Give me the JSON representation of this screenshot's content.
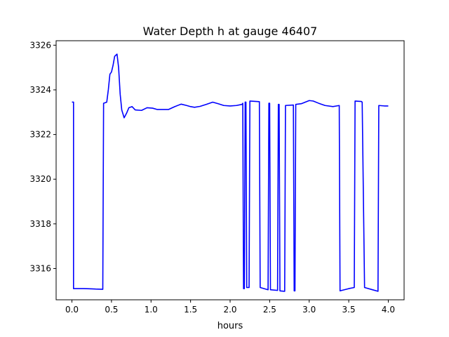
{
  "chart_data": {
    "type": "line",
    "title": "Water Depth h at gauge 46407",
    "xlabel": "hours",
    "ylabel": "",
    "xlim": [
      -0.2,
      4.2
    ],
    "ylim": [
      3314.6,
      3326.2
    ],
    "xticks": [
      0.0,
      0.5,
      1.0,
      1.5,
      2.0,
      2.5,
      3.0,
      3.5,
      4.0
    ],
    "xtick_labels": [
      "0.0",
      "0.5",
      "1.0",
      "1.5",
      "2.0",
      "2.5",
      "3.0",
      "3.5",
      "4.0"
    ],
    "yticks": [
      3316,
      3318,
      3320,
      3322,
      3324,
      3326
    ],
    "ytick_labels": [
      "3316",
      "3318",
      "3320",
      "3322",
      "3324",
      "3326"
    ],
    "grid": false,
    "color": "#0000ff",
    "series": [
      {
        "name": "",
        "points": [
          [
            0.0,
            3323.45
          ],
          [
            0.02,
            3323.45
          ],
          [
            0.02,
            3315.1
          ],
          [
            0.15,
            3315.1
          ],
          [
            0.25,
            3315.09
          ],
          [
            0.3,
            3315.08
          ],
          [
            0.39,
            3315.07
          ],
          [
            0.4,
            3323.4
          ],
          [
            0.44,
            3323.45
          ],
          [
            0.46,
            3324.0
          ],
          [
            0.48,
            3324.7
          ],
          [
            0.5,
            3324.8
          ],
          [
            0.52,
            3325.1
          ],
          [
            0.54,
            3325.5
          ],
          [
            0.57,
            3325.6
          ],
          [
            0.59,
            3325.0
          ],
          [
            0.61,
            3323.8
          ],
          [
            0.63,
            3323.1
          ],
          [
            0.66,
            3322.75
          ],
          [
            0.69,
            3322.95
          ],
          [
            0.72,
            3323.2
          ],
          [
            0.76,
            3323.25
          ],
          [
            0.8,
            3323.1
          ],
          [
            0.88,
            3323.08
          ],
          [
            0.95,
            3323.2
          ],
          [
            1.02,
            3323.18
          ],
          [
            1.08,
            3323.12
          ],
          [
            1.15,
            3323.12
          ],
          [
            1.22,
            3323.12
          ],
          [
            1.3,
            3323.25
          ],
          [
            1.38,
            3323.36
          ],
          [
            1.45,
            3323.3
          ],
          [
            1.5,
            3323.25
          ],
          [
            1.55,
            3323.22
          ],
          [
            1.62,
            3323.26
          ],
          [
            1.7,
            3323.35
          ],
          [
            1.78,
            3323.45
          ],
          [
            1.85,
            3323.38
          ],
          [
            1.92,
            3323.3
          ],
          [
            2.0,
            3323.28
          ],
          [
            2.08,
            3323.3
          ],
          [
            2.15,
            3323.35
          ],
          [
            2.16,
            3323.4
          ],
          [
            2.17,
            3315.1
          ],
          [
            2.18,
            3315.1
          ],
          [
            2.19,
            3323.45
          ],
          [
            2.2,
            3323.45
          ],
          [
            2.21,
            3315.15
          ],
          [
            2.24,
            3315.15
          ],
          [
            2.25,
            3323.5
          ],
          [
            2.37,
            3323.47
          ],
          [
            2.38,
            3315.15
          ],
          [
            2.48,
            3315.05
          ],
          [
            2.49,
            3323.4
          ],
          [
            2.5,
            3323.4
          ],
          [
            2.51,
            3315.05
          ],
          [
            2.6,
            3315.02
          ],
          [
            2.61,
            3323.35
          ],
          [
            2.62,
            3323.35
          ],
          [
            2.63,
            3315.0
          ],
          [
            2.69,
            3314.98
          ],
          [
            2.7,
            3323.3
          ],
          [
            2.8,
            3323.32
          ],
          [
            2.81,
            3315.0
          ],
          [
            2.82,
            3315.0
          ],
          [
            2.83,
            3323.35
          ],
          [
            2.9,
            3323.38
          ],
          [
            2.95,
            3323.45
          ],
          [
            3.0,
            3323.52
          ],
          [
            3.05,
            3323.5
          ],
          [
            3.12,
            3323.4
          ],
          [
            3.2,
            3323.3
          ],
          [
            3.3,
            3323.25
          ],
          [
            3.38,
            3323.3
          ],
          [
            3.39,
            3315.0
          ],
          [
            3.5,
            3315.1
          ],
          [
            3.57,
            3315.15
          ],
          [
            3.58,
            3323.5
          ],
          [
            3.66,
            3323.48
          ],
          [
            3.67,
            3323.45
          ],
          [
            3.7,
            3315.15
          ],
          [
            3.8,
            3315.05
          ],
          [
            3.87,
            3314.98
          ],
          [
            3.88,
            3323.3
          ],
          [
            3.95,
            3323.28
          ],
          [
            4.0,
            3323.28
          ]
        ]
      }
    ]
  }
}
